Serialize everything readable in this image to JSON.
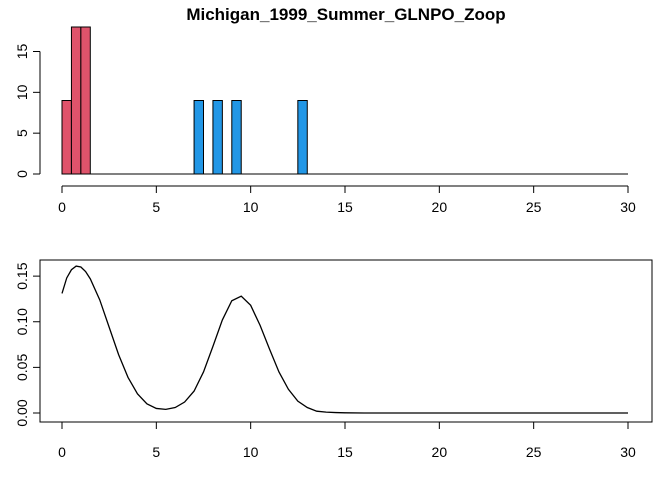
{
  "chart_data": [
    {
      "type": "bar",
      "title": "Michigan_1999_Summer_GLNPO_Zoop",
      "xlabel": "",
      "ylabel": "",
      "xlim": [
        0,
        30
      ],
      "ylim": [
        0,
        18
      ],
      "x_ticks": [
        "0",
        "5",
        "10",
        "15",
        "20",
        "25",
        "30"
      ],
      "y_ticks": [
        "0",
        "5",
        "10",
        "15"
      ],
      "grid": false,
      "legend": "none",
      "bar_width": 0.5,
      "bars": [
        {
          "x": 0,
          "value": 9,
          "color": "#DF536B"
        },
        {
          "x": 0.5,
          "value": 18,
          "color": "#DF536B"
        },
        {
          "x": 1,
          "value": 18,
          "color": "#DF536B"
        },
        {
          "x": 7,
          "value": 9,
          "color": "#2297E6"
        },
        {
          "x": 8,
          "value": 9,
          "color": "#2297E6"
        },
        {
          "x": 9,
          "value": 9,
          "color": "#2297E6"
        },
        {
          "x": 12.5,
          "value": 9,
          "color": "#2297E6"
        }
      ]
    },
    {
      "type": "line",
      "title": "",
      "xlabel": "",
      "ylabel": "",
      "xlim": [
        0,
        30
      ],
      "ylim": [
        0,
        0.16
      ],
      "x_ticks": [
        "0",
        "5",
        "10",
        "15",
        "20",
        "25",
        "30"
      ],
      "y_ticks": [
        "0.00",
        "0.05",
        "0.10",
        "0.15"
      ],
      "grid": false,
      "legend": "none",
      "line_color": "#000000",
      "x": [
        0,
        0.25,
        0.5,
        0.75,
        1,
        1.25,
        1.5,
        2,
        2.5,
        3,
        3.5,
        4,
        4.5,
        5,
        5.5,
        6,
        6.5,
        7,
        7.5,
        8,
        8.5,
        9,
        9.5,
        10,
        10.5,
        11,
        11.5,
        12,
        12.5,
        13,
        13.5,
        14,
        14.5,
        15,
        16,
        18,
        20,
        22,
        24,
        26,
        28,
        30
      ],
      "y": [
        0.131,
        0.148,
        0.157,
        0.161,
        0.16,
        0.155,
        0.147,
        0.124,
        0.094,
        0.064,
        0.039,
        0.021,
        0.01,
        0.005,
        0.004,
        0.006,
        0.012,
        0.024,
        0.045,
        0.073,
        0.102,
        0.123,
        0.128,
        0.118,
        0.096,
        0.07,
        0.045,
        0.026,
        0.013,
        0.006,
        0.002,
        0.001,
        0.0005,
        0.0002,
        0.0,
        0.0,
        0.0,
        0.0,
        0.0,
        0.0,
        0.0,
        0.0
      ]
    }
  ]
}
